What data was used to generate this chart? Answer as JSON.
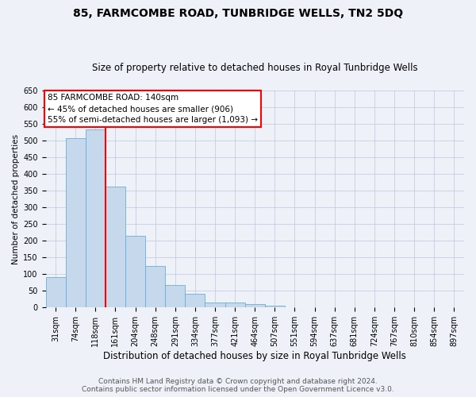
{
  "title": "85, FARMCOMBE ROAD, TUNBRIDGE WELLS, TN2 5DQ",
  "subtitle": "Size of property relative to detached houses in Royal Tunbridge Wells",
  "xlabel": "Distribution of detached houses by size in Royal Tunbridge Wells",
  "ylabel": "Number of detached properties",
  "bar_labels": [
    "31sqm",
    "74sqm",
    "118sqm",
    "161sqm",
    "204sqm",
    "248sqm",
    "291sqm",
    "334sqm",
    "377sqm",
    "421sqm",
    "464sqm",
    "507sqm",
    "551sqm",
    "594sqm",
    "637sqm",
    "681sqm",
    "724sqm",
    "767sqm",
    "810sqm",
    "854sqm",
    "897sqm"
  ],
  "bar_values": [
    90,
    507,
    533,
    362,
    214,
    125,
    67,
    42,
    15,
    15,
    10,
    6,
    2,
    1,
    0,
    1,
    0,
    0,
    0,
    1,
    0
  ],
  "bar_color": "#c5d8ec",
  "bar_edge_color": "#6aaed6",
  "property_line_x": 2.5,
  "annotation_text": "85 FARMCOMBE ROAD: 140sqm\n← 45% of detached houses are smaller (906)\n55% of semi-detached houses are larger (1,093) →",
  "annotation_box_color": "white",
  "annotation_box_edge_color": "red",
  "vline_color": "red",
  "ylim": [
    0,
    650
  ],
  "yticks": [
    0,
    50,
    100,
    150,
    200,
    250,
    300,
    350,
    400,
    450,
    500,
    550,
    600,
    650
  ],
  "footer_line1": "Contains HM Land Registry data © Crown copyright and database right 2024.",
  "footer_line2": "Contains public sector information licensed under the Open Government Licence v3.0.",
  "bg_color": "#eef2f8",
  "plot_bg_color": "#eef2f8",
  "grid_color": "#c0c8d8",
  "title_fontsize": 10,
  "subtitle_fontsize": 8.5,
  "xlabel_fontsize": 8.5,
  "ylabel_fontsize": 7.5,
  "tick_fontsize": 7,
  "annotation_fontsize": 7.5,
  "footer_fontsize": 6.5
}
